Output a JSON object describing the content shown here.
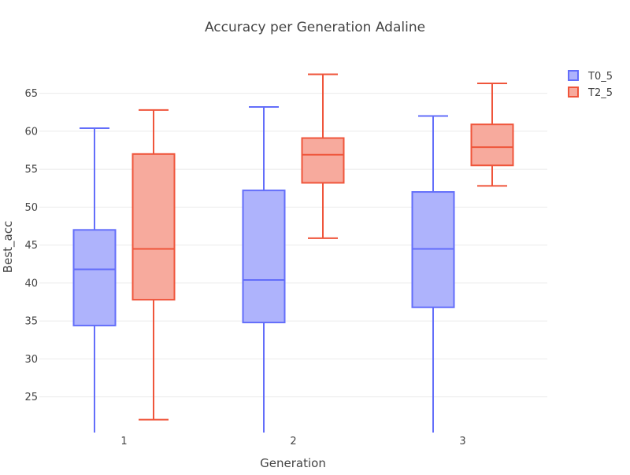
{
  "chart_data": {
    "type": "box",
    "title": "Accuracy per Generation Adaline",
    "xlabel": "Generation",
    "ylabel": "Best_acc",
    "categories": [
      "1",
      "2",
      "3"
    ],
    "y_ticks": [
      25,
      30,
      35,
      40,
      45,
      50,
      55,
      60,
      65
    ],
    "ylim": [
      20.3,
      69
    ],
    "grid": true,
    "legend_position": "top-right",
    "series": [
      {
        "name": "T0_5",
        "color": "#636efa",
        "fill": "#aeb3fc",
        "boxes": [
          {
            "min": 20.3,
            "q1": 34.4,
            "median": 41.8,
            "q3": 47.0,
            "max": 60.4
          },
          {
            "min": 20.3,
            "q1": 34.8,
            "median": 40.4,
            "q3": 52.2,
            "max": 63.2
          },
          {
            "min": 20.3,
            "q1": 36.8,
            "median": 44.5,
            "q3": 52.0,
            "max": 62.0
          }
        ]
      },
      {
        "name": "T2_5",
        "color": "#ef553b",
        "fill": "#f7aa9d",
        "boxes": [
          {
            "min": 22.0,
            "q1": 37.8,
            "median": 44.5,
            "q3": 57.0,
            "max": 62.8
          },
          {
            "min": 45.9,
            "q1": 53.2,
            "median": 56.9,
            "q3": 59.1,
            "max": 67.5
          },
          {
            "min": 52.8,
            "q1": 55.5,
            "median": 57.9,
            "q3": 60.9,
            "max": 66.3
          }
        ]
      }
    ]
  }
}
